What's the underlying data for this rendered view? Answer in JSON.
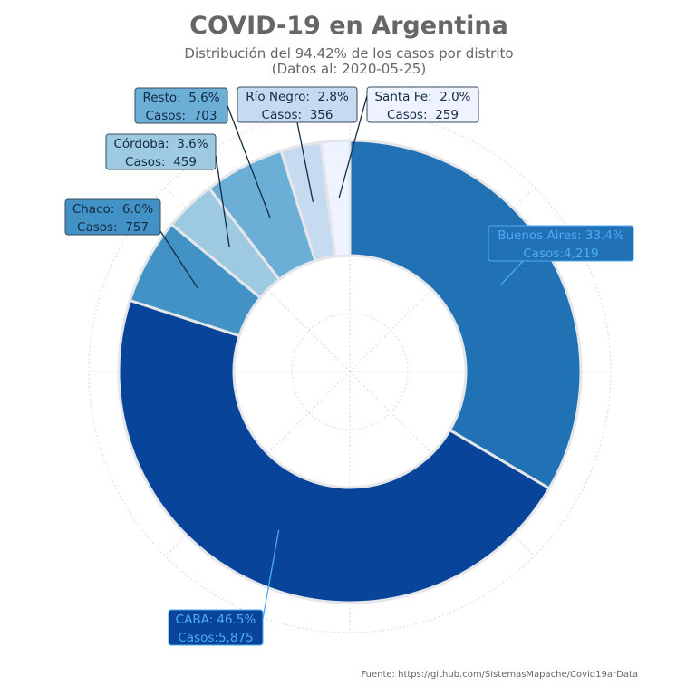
{
  "chart_data": {
    "type": "pie",
    "style": "donut",
    "title": "COVID-19 en Argentina",
    "subtitle_line1": "Distribución del 94.42% de los casos por distrito",
    "subtitle_line2": "(Datos al: 2020-05-25)",
    "source": "Fuente: https://github.com/SistemasMapache/Covid19arData",
    "grid": true,
    "slices": [
      {
        "name": "Buenos Aires",
        "percent": 33.4,
        "cases": 4219,
        "pct_text": "Buenos Aires: 33.4%",
        "cases_text": "Casos:4,219",
        "color": "#2171b5",
        "label_color": "#4dabf7"
      },
      {
        "name": "CABA",
        "percent": 46.5,
        "cases": 5875,
        "pct_text": "CABA: 46.5%",
        "cases_text": "Casos:5,875",
        "color": "#08449a",
        "label_color": "#4dabf7"
      },
      {
        "name": "Chaco",
        "percent": 6.0,
        "cases": 757,
        "pct_text": "Chaco:  6.0%",
        "cases_text": "Casos:  757",
        "color": "#4292c6",
        "label_color": "#132b43"
      },
      {
        "name": "Córdoba",
        "percent": 3.6,
        "cases": 459,
        "pct_text": "Córdoba:  3.6%",
        "cases_text": "Casos:  459",
        "color": "#9ecae1",
        "label_color": "#132b43"
      },
      {
        "name": "Resto",
        "percent": 5.6,
        "cases": 703,
        "pct_text": "Resto:  5.6%",
        "cases_text": "Casos:  703",
        "color": "#6baed6",
        "label_color": "#132b43"
      },
      {
        "name": "Río Negro",
        "percent": 2.8,
        "cases": 356,
        "pct_text": "Río Negro:  2.8%",
        "cases_text": "Casos:  356",
        "color": "#c6dbef",
        "label_color": "#132b43"
      },
      {
        "name": "Santa Fe",
        "percent": 2.0,
        "cases": 259,
        "pct_text": "Santa Fe:  2.0%",
        "cases_text": "Casos:  259",
        "color": "#eff3ff",
        "label_color": "#132b43"
      }
    ]
  }
}
